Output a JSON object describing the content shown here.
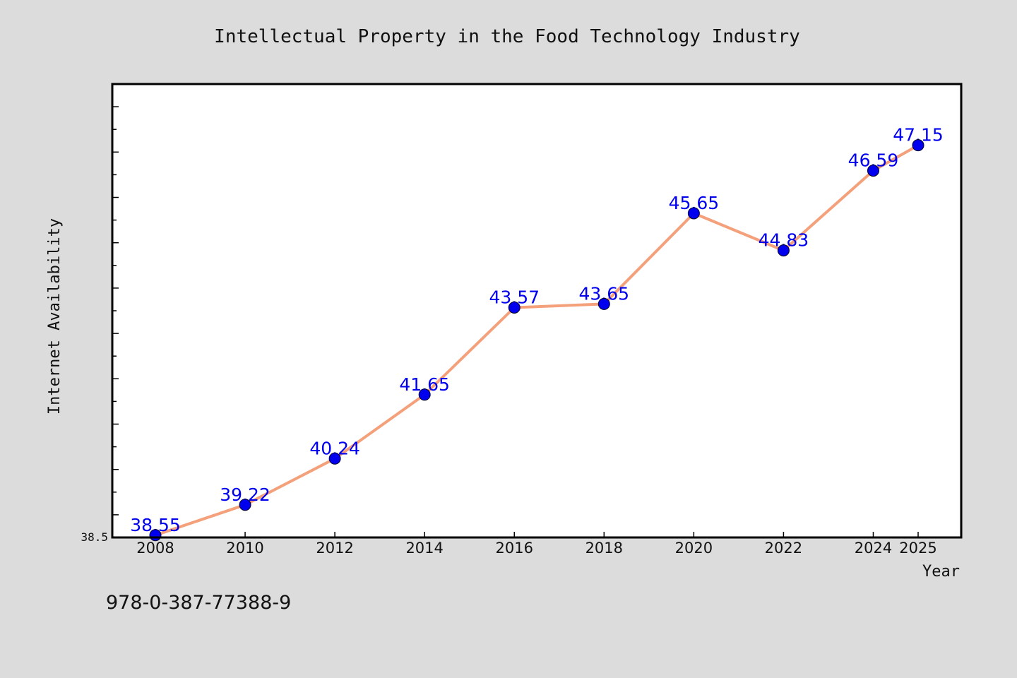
{
  "chart_data": {
    "type": "line",
    "title": "Intellectual Property in the Food Technology Industry",
    "xlabel": "Year",
    "ylabel": "Internet Availability",
    "x": [
      "2008",
      "2010",
      "2012",
      "2014",
      "2016",
      "2018",
      "2020",
      "2022",
      "2024",
      "2025"
    ],
    "categories": [
      "2008",
      "2010",
      "2012",
      "2014",
      "2016",
      "2018",
      "2020",
      "2022",
      "2024",
      "2025"
    ],
    "series": [
      {
        "values": [
          38.55,
          39.22,
          40.24,
          41.65,
          43.57,
          43.65,
          45.65,
          44.83,
          46.59,
          47.15
        ]
      }
    ],
    "data_labels": [
      "38.55",
      "39.22",
      "40.24",
      "41.65",
      "43.57",
      "43.65",
      "45.65",
      "44.83",
      "46.59",
      "47.15"
    ],
    "ylim": [
      38.5,
      48.5
    ],
    "y_tick_labels": [
      "38.5"
    ],
    "grid": false,
    "colors": {
      "line": "#f4a07a",
      "marker": "#0000ee",
      "data_label": "#0000ee",
      "plot_background": "#ffffff",
      "figure_background": "#dcdcdc"
    }
  },
  "footnote": "978-0-387-77388-9"
}
